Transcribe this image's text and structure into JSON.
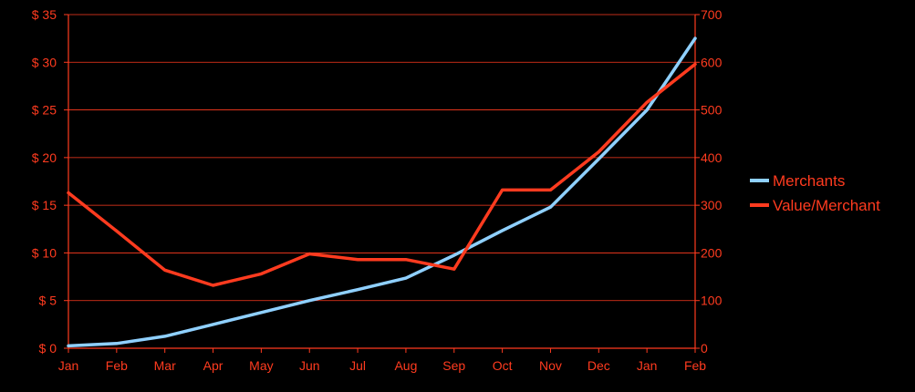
{
  "chart_data": {
    "type": "line",
    "categories": [
      "Jan",
      "Feb",
      "Mar",
      "Apr",
      "May",
      "Jun",
      "Jul",
      "Aug",
      "Sep",
      "Oct",
      "Nov",
      "Dec",
      "Jan",
      "Feb"
    ],
    "y_left": {
      "ticks": [
        "$ 0",
        "$ 5",
        "$ 10",
        "$ 15",
        "$ 20",
        "$ 25",
        "$ 30",
        "$ 35"
      ],
      "range": [
        0,
        35
      ]
    },
    "y_right": {
      "ticks": [
        "0",
        "100",
        "200",
        "300",
        "400",
        "500",
        "600",
        "700"
      ],
      "range": [
        0,
        700
      ]
    },
    "grid": true,
    "legend_position": "right",
    "series": [
      {
        "name": "Merchants",
        "axis": "right",
        "color": "#8fd0ff",
        "values": [
          5,
          10,
          25,
          50,
          75,
          100,
          123,
          147,
          195,
          247,
          296,
          397,
          500,
          650
        ]
      },
      {
        "name": "Value/Merchant",
        "axis": "left",
        "color": "#ff3b1f",
        "values": [
          16.3,
          12.3,
          8.2,
          6.6,
          7.8,
          9.9,
          9.3,
          9.3,
          8.3,
          16.6,
          16.6,
          20.6,
          25.8,
          29.8
        ]
      }
    ],
    "colors": {
      "background": "#000000",
      "axis": "#ff3b1f",
      "grid": "#ff3b1f",
      "right_axis": "#8fd0ff"
    }
  }
}
